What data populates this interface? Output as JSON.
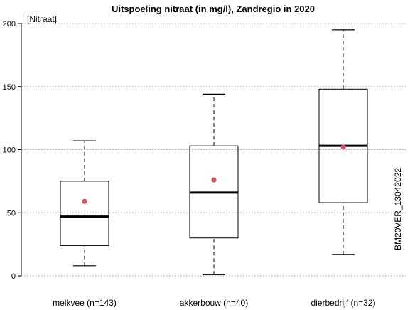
{
  "chart_data": {
    "type": "boxplot",
    "title": "Uitspoeling nitraat (in mg/l), Zandregio in 2020",
    "ylabel": "[Nitraat]",
    "ylim": [
      0,
      200
    ],
    "yticks": [
      0,
      50,
      100,
      150,
      200
    ],
    "grid": "horizontal dotted",
    "side_note": "BM20VER_13042022",
    "categories": [
      "melkvee (n=143)",
      "akkerbouw (n=40)",
      "dierbedrijf (n=32)"
    ],
    "boxes": [
      {
        "category": "melkvee (n=143)",
        "whisker_low": 8,
        "q1": 24,
        "median": 47,
        "q3": 75,
        "whisker_high": 107,
        "mean": 59
      },
      {
        "category": "akkerbouw (n=40)",
        "whisker_low": 1,
        "q1": 30,
        "median": 66,
        "q3": 103,
        "whisker_high": 144,
        "mean": 76
      },
      {
        "category": "dierbedrijf (n=32)",
        "whisker_low": 17,
        "q1": 58,
        "median": 103,
        "q3": 148,
        "whisker_high": 195,
        "mean": 102
      }
    ],
    "colors": {
      "box": "#000000",
      "mean_marker": "#cc5566",
      "grid": "#999999"
    }
  }
}
